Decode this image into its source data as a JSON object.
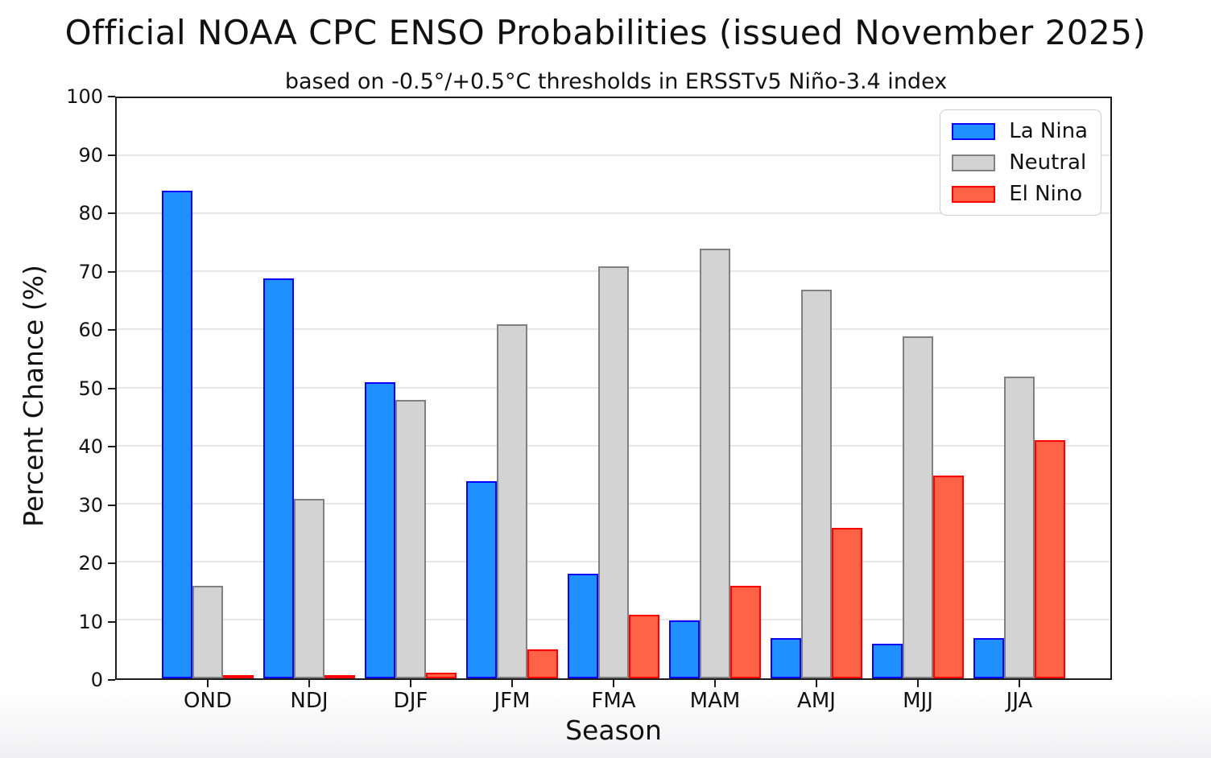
{
  "chart_data": {
    "type": "bar",
    "title": "Official NOAA CPC ENSO Probabilities (issued November 2025)",
    "subtitle": "based on -0.5°/+0.5°C thresholds in ERSSTv5 Niño-3.4 index",
    "xlabel": "Season",
    "ylabel": "Percent Chance (%)",
    "categories": [
      "OND",
      "NDJ",
      "DJF",
      "JFM",
      "FMA",
      "MAM",
      "AMJ",
      "MJJ",
      "JJA"
    ],
    "series": [
      {
        "name": "La Nina",
        "fill_color": "#1E90FF",
        "edge_color": "#0000FF",
        "values": [
          84,
          69,
          51,
          34,
          18,
          10,
          7,
          6,
          7
        ]
      },
      {
        "name": "Neutral",
        "fill_color": "#D3D3D3",
        "edge_color": "#808080",
        "values": [
          16,
          31,
          48,
          61,
          71,
          74,
          67,
          59,
          52
        ]
      },
      {
        "name": "El Nino",
        "fill_color": "#FF6347",
        "edge_color": "#FF0000",
        "values": [
          0,
          0,
          1,
          5,
          11,
          16,
          26,
          35,
          41
        ]
      }
    ],
    "ylim": [
      0,
      100
    ],
    "yticks": [
      0,
      10,
      20,
      30,
      40,
      50,
      60,
      70,
      80,
      90,
      100
    ],
    "grid": "horizontal",
    "legend_position": "upper right"
  }
}
